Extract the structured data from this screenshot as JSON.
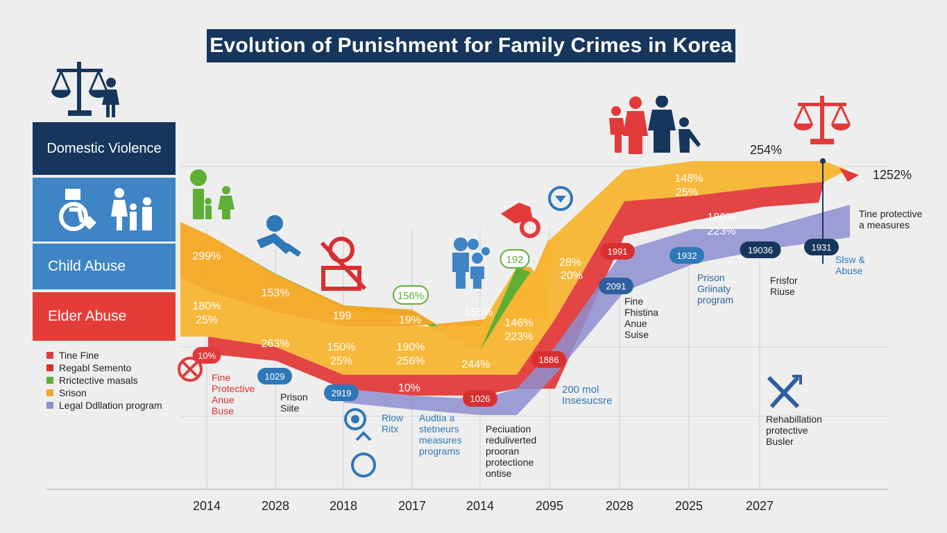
{
  "title": "Evolution of Punishment for Family Crimes in Korea",
  "categories_panel": [
    {
      "label": "Domestic Violence",
      "color": "#17365d"
    },
    {
      "label": "",
      "color": "#3f84c4"
    },
    {
      "label": "Child Abuse",
      "color": "#3f84c4"
    },
    {
      "label": "Elder Abuse",
      "color": "#e63c37"
    }
  ],
  "legend": [
    {
      "label": "Tine Fine",
      "color": "#e23a3a"
    },
    {
      "label": "Regabl Semento",
      "color": "#d83030"
    },
    {
      "label": "Rrictective masals",
      "color": "#5fae36"
    },
    {
      "label": "Srison",
      "color": "#f4a623"
    },
    {
      "label": "Legal Ddllation program",
      "color": "#8e8ed0"
    }
  ],
  "chart_data": {
    "type": "area",
    "title": "Evolution of Punishment for Family Crimes in Korea",
    "x": [
      "2014",
      "2028",
      "2018",
      "2017",
      "2014",
      "2095",
      "2028",
      "2025",
      "2027"
    ],
    "xlabel": "",
    "ylabel": "",
    "grid": true,
    "legend_position": "left",
    "series": [
      {
        "name": "Rrictective masals",
        "color": "#5fae36"
      },
      {
        "name": "Tine Fine",
        "color": "#f4a623"
      },
      {
        "name": "Srison",
        "color": "#f7b531"
      },
      {
        "name": "Regabl Semento",
        "color": "#e23a3a"
      },
      {
        "name": "Legal Ddllation program",
        "color": "#8e8ed0"
      }
    ],
    "value_labels": [
      {
        "text": "299%",
        "color": "#ffffff"
      },
      {
        "text": "153%",
        "color": "#ffffff"
      },
      {
        "text": "199",
        "color": "#ffffff"
      },
      {
        "text": "19%",
        "color": "#ffffff"
      },
      {
        "text": "155%",
        "color": "#ffffff"
      },
      {
        "text": "180%",
        "color": "#ffffff"
      },
      {
        "text": "25%",
        "color": "#ffffff"
      },
      {
        "text": "263%",
        "color": "#ffffff"
      },
      {
        "text": "150%",
        "color": "#ffffff"
      },
      {
        "text": "25%",
        "color": "#ffffff"
      },
      {
        "text": "190%",
        "color": "#ffffff"
      },
      {
        "text": "256%",
        "color": "#ffffff"
      },
      {
        "text": "244%",
        "color": "#ffffff"
      },
      {
        "text": "146%",
        "color": "#ffffff"
      },
      {
        "text": "223%",
        "color": "#ffffff"
      },
      {
        "text": "28%",
        "color": "#ffffff"
      },
      {
        "text": "20%",
        "color": "#ffffff"
      },
      {
        "text": "10%",
        "color": "#ffffff"
      },
      {
        "text": "148%",
        "color": "#ffffff"
      },
      {
        "text": "25%",
        "color": "#ffffff"
      },
      {
        "text": "180%",
        "color": "#ffffff"
      },
      {
        "text": "223%",
        "color": "#ffffff"
      },
      {
        "text": "254%",
        "color": "#222222"
      },
      {
        "text": "1252%",
        "color": "#222222"
      }
    ],
    "badges": [
      {
        "text": "10%",
        "color": "#e23a3a"
      },
      {
        "text": "1029",
        "color": "#2f78b7"
      },
      {
        "text": "2919",
        "color": "#2f78b7"
      },
      {
        "text": "1026",
        "color": "#d83030"
      },
      {
        "text": "1886",
        "color": "#d83030"
      },
      {
        "text": "1991",
        "color": "#d83030"
      },
      {
        "text": "2091",
        "color": "#2f5f9e"
      },
      {
        "text": "1932",
        "color": "#2f78b7"
      },
      {
        "text": "19036",
        "color": "#17365d"
      },
      {
        "text": "1931",
        "color": "#17365d"
      },
      {
        "text": "156%",
        "color": "#5fae36"
      },
      {
        "text": "192",
        "color": "#5fae36"
      }
    ]
  },
  "annotations": [
    {
      "text": "Fine\nProtective\nAnue\nBuse",
      "color": "#d83030"
    },
    {
      "text": "Prison\nSiite",
      "color": "#222222"
    },
    {
      "text": "Rlow\nRitx",
      "color": "#2f78b7"
    },
    {
      "text": "Audtia a\nstetneurs\nmeasures\nprograms",
      "color": "#2f78b7"
    },
    {
      "text": "Peciuation\nreduliverted\nprooran\nprotectione\nontise",
      "color": "#222222"
    },
    {
      "text": "200 mol\nInsesucsre",
      "color": "#2f78b7"
    },
    {
      "text": "Fine\nFhistina\nAnue\nSuise",
      "color": "#222222"
    },
    {
      "text": "Prison\nGriinaty\nprogram",
      "color": "#2f5f9e"
    },
    {
      "text": "Frisfor\nRiuse",
      "color": "#222222"
    },
    {
      "text": "Tine protective\na measures",
      "color": "#222222"
    },
    {
      "text": "Slsw &\nAbuse",
      "color": "#2f78b7"
    },
    {
      "text": "Rehabillation\nprotective\nBusler",
      "color": "#222222"
    }
  ]
}
